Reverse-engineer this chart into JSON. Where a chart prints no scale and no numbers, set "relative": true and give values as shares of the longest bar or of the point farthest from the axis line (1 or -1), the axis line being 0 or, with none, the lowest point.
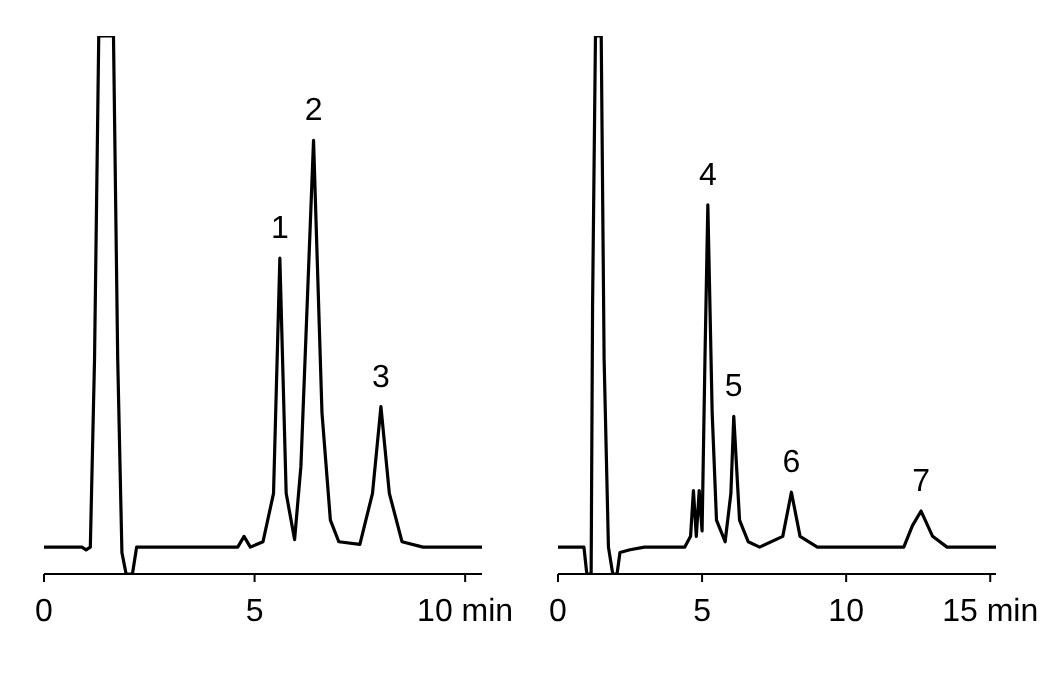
{
  "chart_data": [
    {
      "type": "line",
      "relative": true,
      "xlim": [
        0,
        10.4
      ],
      "xticks": [
        0,
        5,
        {
          "value": 10,
          "label": "10 min"
        }
      ],
      "x": [
        0,
        0.9,
        1.0,
        1.1,
        1.2,
        1.3,
        1.65,
        1.75,
        1.85,
        1.95,
        2.1,
        2.2,
        4.6,
        4.75,
        4.9,
        5.2,
        5.45,
        5.6,
        5.75,
        5.95,
        6.1,
        6.4,
        6.6,
        6.8,
        7.0,
        7.5,
        7.8,
        8.0,
        8.2,
        8.5,
        9.0,
        10.4
      ],
      "series": [
        {
          "color": "#000000",
          "values": [
            0.05,
            0.05,
            0.045,
            0.05,
            0.4,
            1,
            1,
            0.4,
            0.04,
            0,
            0,
            0.05,
            0.05,
            0.07,
            0.05,
            0.06,
            0.15,
            0.587,
            0.15,
            0.064,
            0.2,
            0.806,
            0.3,
            0.1,
            0.06,
            0.055,
            0.15,
            0.311,
            0.15,
            0.06,
            0.05,
            0.05
          ]
        }
      ],
      "annotations": [
        {
          "text": "1",
          "x": 5.6,
          "y": 0.587
        },
        {
          "text": "2",
          "x": 6.4,
          "y": 0.806
        },
        {
          "text": "3",
          "x": 8.0,
          "y": 0.311
        }
      ]
    },
    {
      "type": "line",
      "relative": true,
      "xlim": [
        0,
        15.2
      ],
      "xticks": [
        0,
        5,
        10,
        {
          "value": 15,
          "label": "15 min"
        }
      ],
      "x": [
        0,
        0.9,
        1.0,
        1.15,
        1.2,
        1.3,
        1.5,
        1.6,
        1.75,
        1.9,
        2.05,
        2.15,
        2.5,
        3,
        4.4,
        4.6,
        4.7,
        4.8,
        4.9,
        5.0,
        5.1,
        5.2,
        5.35,
        5.5,
        5.8,
        6.0,
        6.1,
        6.3,
        6.6,
        7.0,
        7.8,
        8.1,
        8.4,
        9,
        12.0,
        12.3,
        12.6,
        13.0,
        13.5,
        15.2
      ],
      "series": [
        {
          "color": "#000000",
          "values": [
            0.05,
            0.05,
            0,
            0,
            0.5,
            1,
            1,
            0.4,
            0.05,
            0,
            0,
            0.04,
            0.045,
            0.05,
            0.05,
            0.07,
            0.155,
            0.07,
            0.155,
            0.08,
            0.4,
            0.686,
            0.3,
            0.1,
            0.06,
            0.15,
            0.293,
            0.1,
            0.06,
            0.05,
            0.07,
            0.152,
            0.07,
            0.05,
            0.05,
            0.09,
            0.117,
            0.07,
            0.05,
            0.05
          ]
        }
      ],
      "annotations": [
        {
          "text": "4",
          "x": 5.2,
          "y": 0.686
        },
        {
          "text": "5",
          "x": 6.1,
          "y": 0.293
        },
        {
          "text": "6",
          "x": 8.1,
          "y": 0.152
        },
        {
          "text": "7",
          "x": 12.6,
          "y": 0.117
        }
      ]
    }
  ]
}
